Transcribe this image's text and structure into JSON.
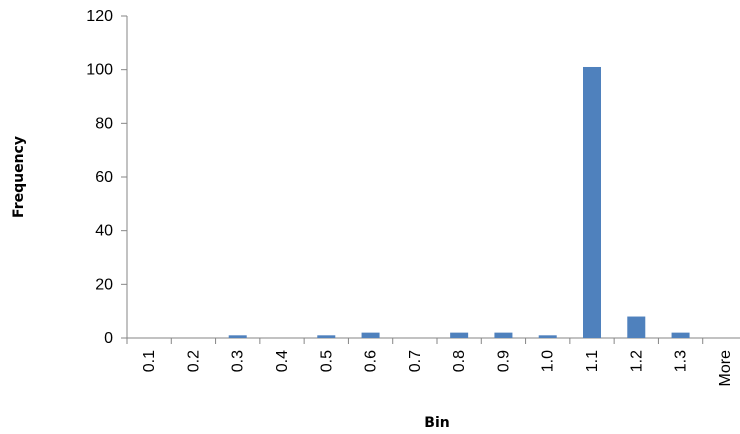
{
  "chart_data": {
    "type": "bar",
    "title": "",
    "xlabel": "Bin",
    "ylabel": "Frequency",
    "categories": [
      "0.1",
      "0.2",
      "0.3",
      "0.4",
      "0.5",
      "0.6",
      "0.7",
      "0.8",
      "0.9",
      "1.0",
      "1.1",
      "1.2",
      "1.3",
      "More"
    ],
    "values": [
      0,
      0,
      1,
      0,
      1,
      2,
      0,
      2,
      2,
      1,
      101,
      8,
      2,
      0
    ],
    "ylim": [
      0,
      120
    ],
    "yticks": [
      "0",
      "20",
      "40",
      "60",
      "80",
      "100",
      "120"
    ],
    "bar_color": "#4f81bd",
    "grid": false,
    "legend": "none"
  }
}
